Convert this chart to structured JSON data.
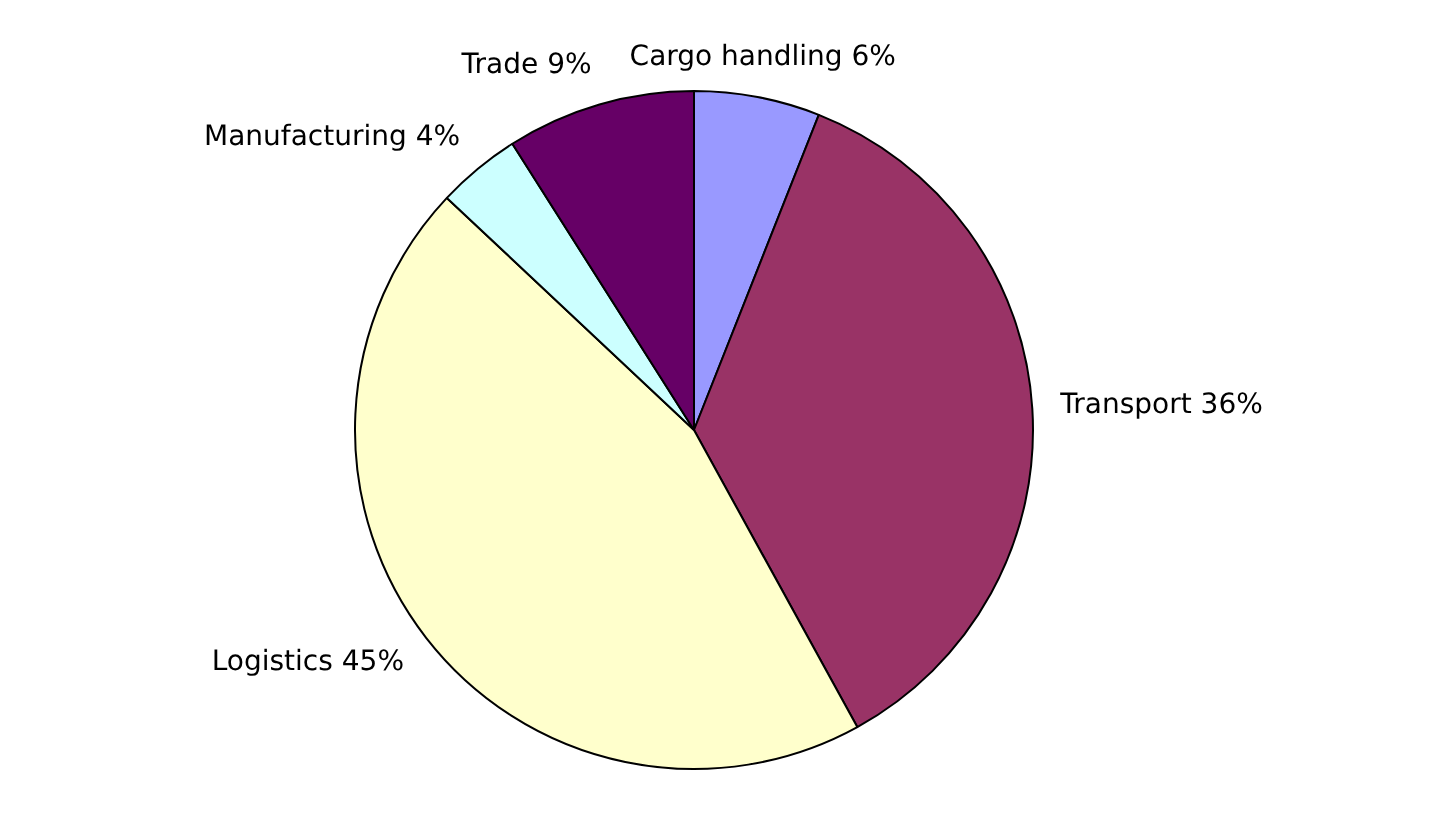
{
  "chart_data": {
    "type": "pie",
    "categories": [
      "Cargo handling",
      "Transport",
      "Logistics",
      "Manufacturing",
      "Trade"
    ],
    "values": [
      6,
      36,
      45,
      4,
      9
    ],
    "value_labels": [
      "6%",
      "36%",
      "45%",
      "4%",
      "9%"
    ],
    "colors": [
      "#9999ff",
      "#993366",
      "#ffffcc",
      "#ccffff",
      "#660066"
    ],
    "legend": false
  }
}
